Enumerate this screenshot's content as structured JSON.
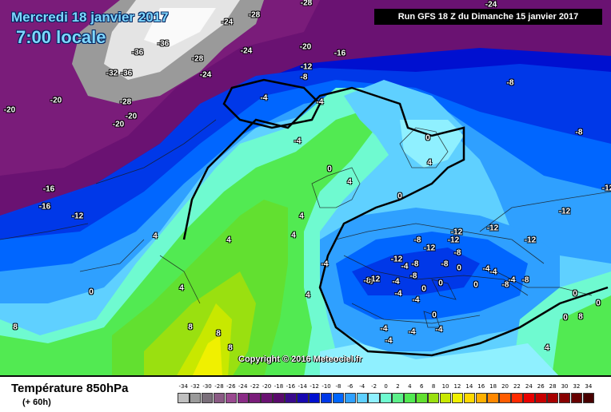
{
  "header": {
    "date": "Mercredi 18 janvier 2017",
    "time": "7:00 locale",
    "run": "Run GFS 18 Z du Dimanche 15 janvier 2017"
  },
  "footer": {
    "variable": "Température 850hPa",
    "lead": "(+ 60h)",
    "copyright": "Copyright © 2016 Meteociel.fr"
  },
  "legend": {
    "values": [
      "-34",
      "-32",
      "-30",
      "-28",
      "-26",
      "-24",
      "-22",
      "-20",
      "-18",
      "-16",
      "-14",
      "-12",
      "-10",
      "-8",
      "-6",
      "-4",
      "-2",
      "0",
      "2",
      "4",
      "6",
      "8",
      "10",
      "12",
      "14",
      "16",
      "18",
      "20",
      "22",
      "24",
      "26",
      "28",
      "30",
      "32",
      "34"
    ],
    "colors": [
      "#bfbfbf",
      "#9a9a9a",
      "#7a6f7a",
      "#8a5a84",
      "#9a4a90",
      "#8a2c86",
      "#7a1c7a",
      "#6a1272",
      "#5a0a6c",
      "#3a0a8c",
      "#1808b0",
      "#0010d0",
      "#0038e8",
      "#0066ff",
      "#2fa0ff",
      "#5fd0ff",
      "#8ff0ff",
      "#6ffad0",
      "#5cf08a",
      "#52ea52",
      "#62e030",
      "#9ae010",
      "#c8e800",
      "#f0f000",
      "#ffd800",
      "#ffb000",
      "#ff8800",
      "#ff5c00",
      "#ff2a00",
      "#e80000",
      "#c80000",
      "#a80000",
      "#880000",
      "#680000",
      "#480000"
    ]
  },
  "isotherms": [
    {
      "label": "-28"
    },
    {
      "label": "-28"
    },
    {
      "label": "-24"
    },
    {
      "label": "-24"
    },
    {
      "label": "-36"
    },
    {
      "label": "-36"
    },
    {
      "label": "-32"
    },
    {
      "label": "-36"
    },
    {
      "label": "-28"
    },
    {
      "label": "-24"
    },
    {
      "label": "-24"
    },
    {
      "label": "-28"
    },
    {
      "label": "-20"
    },
    {
      "label": "-20"
    },
    {
      "label": "-20"
    },
    {
      "label": "-20"
    },
    {
      "label": "-16"
    },
    {
      "label": "-12"
    },
    {
      "label": "-8"
    },
    {
      "label": "-20"
    },
    {
      "label": "-8"
    },
    {
      "label": "-8"
    },
    {
      "label": "-4"
    },
    {
      "label": "-4"
    },
    {
      "label": "-4"
    },
    {
      "label": "-16"
    },
    {
      "label": "-16"
    },
    {
      "label": "-12"
    },
    {
      "label": "4"
    },
    {
      "label": "4"
    },
    {
      "label": "4"
    },
    {
      "label": "4"
    },
    {
      "label": "4"
    },
    {
      "label": "0"
    },
    {
      "label": "0"
    },
    {
      "label": "4"
    },
    {
      "label": "0"
    },
    {
      "label": "0"
    },
    {
      "label": "-4"
    },
    {
      "label": "-8"
    },
    {
      "label": "-12"
    },
    {
      "label": "-12"
    },
    {
      "label": "-12"
    },
    {
      "label": "-12"
    },
    {
      "label": "-8"
    },
    {
      "label": "-12"
    },
    {
      "label": "-8"
    },
    {
      "label": "-4"
    },
    {
      "label": "-12"
    },
    {
      "label": "-8"
    },
    {
      "label": "-4"
    },
    {
      "label": "-8"
    },
    {
      "label": "-12"
    },
    {
      "label": "0"
    },
    {
      "label": "0"
    },
    {
      "label": "0"
    },
    {
      "label": "-4"
    },
    {
      "label": "-8"
    },
    {
      "label": "-4"
    },
    {
      "label": "-4"
    },
    {
      "label": "0"
    },
    {
      "label": "0"
    },
    {
      "label": "0"
    },
    {
      "label": "4"
    },
    {
      "label": "8"
    },
    {
      "label": "8"
    },
    {
      "label": "8"
    },
    {
      "label": "4"
    },
    {
      "label": "0"
    },
    {
      "label": "4"
    },
    {
      "label": "8"
    },
    {
      "label": "-4"
    },
    {
      "label": "-4"
    },
    {
      "label": "0"
    },
    {
      "label": "-4"
    },
    {
      "label": "-4"
    },
    {
      "label": "8"
    },
    {
      "label": "-8"
    },
    {
      "label": "-8"
    },
    {
      "label": "-12"
    },
    {
      "label": "-12"
    },
    {
      "label": "-8"
    },
    {
      "label": "-4"
    },
    {
      "label": "-4"
    }
  ]
}
